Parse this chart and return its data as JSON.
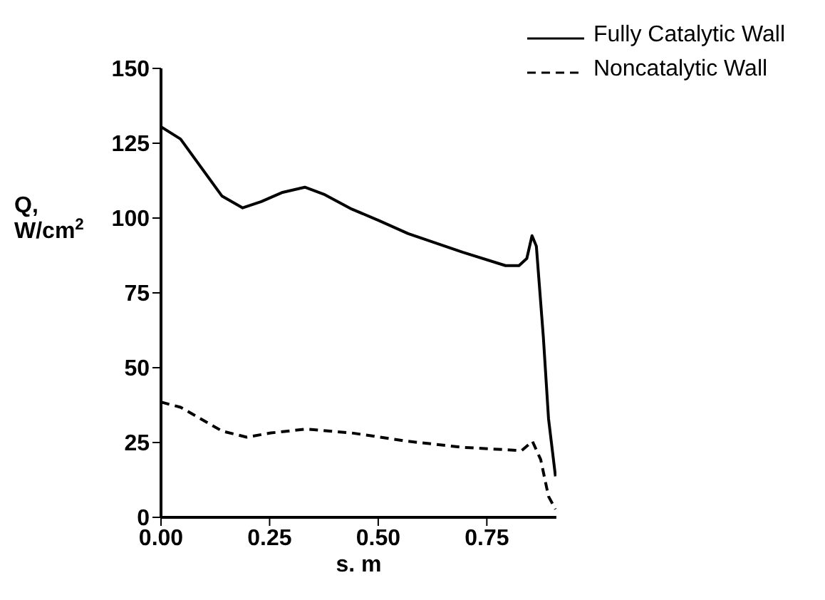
{
  "chart_data": {
    "type": "line",
    "xlabel": "s. m",
    "ylabel": "Q, W/cm$^{2}$",
    "xlim": [
      0,
      0.91
    ],
    "xticks": [
      {
        "value": 0,
        "label": "0.00"
      },
      {
        "value": 0.25,
        "label": "0.25"
      },
      {
        "value": 0.5,
        "label": "0.50"
      },
      {
        "value": 0.75,
        "label": "0.75"
      }
    ],
    "ylim": [
      0,
      150
    ],
    "yticks": [
      0,
      25,
      50,
      75,
      100,
      125,
      150
    ],
    "grid": false,
    "legend": "top right",
    "marker": "none",
    "series": [
      {
        "name": "Fully Catalytic Wall",
        "color": "#000000",
        "line_style": "solid",
        "x": [
          0,
          0.045,
          0.14,
          0.188,
          0.231,
          0.278,
          0.331,
          0.377,
          0.439,
          0.501,
          0.569,
          0.694,
          0.793,
          0.824,
          0.842,
          0.854,
          0.864,
          0.88,
          0.892,
          0.908
        ],
        "values": [
          130.5,
          126.4,
          107.4,
          103.4,
          105.5,
          108.5,
          110.3,
          107.8,
          103,
          99.2,
          94.8,
          88.6,
          84.1,
          84.1,
          86.5,
          94.1,
          90.6,
          60.4,
          33,
          13.7
        ]
      },
      {
        "name": "Noncatalytic Wall",
        "color": "#000000",
        "line_style": "dashed",
        "x": [
          0,
          0.045,
          0.141,
          0.197,
          0.253,
          0.334,
          0.439,
          0.569,
          0.694,
          0.83,
          0.855,
          0.874,
          0.892,
          0.908
        ],
        "values": [
          38.5,
          36.8,
          28.8,
          26.8,
          28.2,
          29.5,
          28.2,
          25.4,
          23.4,
          22.3,
          25.4,
          19.3,
          7,
          2.7
        ]
      }
    ]
  }
}
